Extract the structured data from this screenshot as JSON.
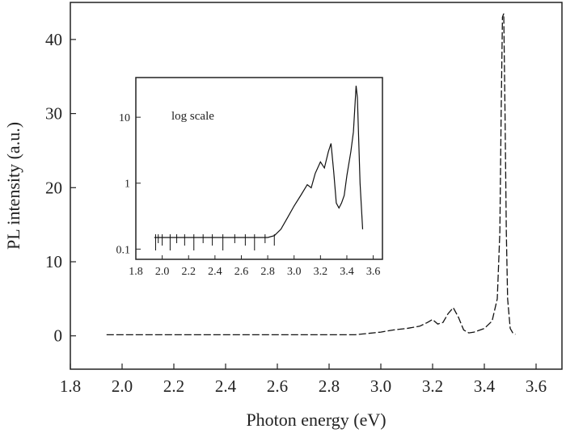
{
  "chart_data": [
    {
      "type": "line",
      "xlabel": "Photon energy (eV)",
      "ylabel": "PL intensity (a.u.)",
      "xlim": [
        1.8,
        3.7
      ],
      "ylim": [
        -4.5,
        45
      ],
      "xticks": [
        "1.8",
        "2.0",
        "2.2",
        "2.4",
        "2.6",
        "2.8",
        "3.0",
        "3.2",
        "3.4",
        "3.6"
      ],
      "yticks": [
        "0",
        "10",
        "20",
        "30",
        "40"
      ],
      "grid": false,
      "series": [
        {
          "x": [
            1.94,
            2.2,
            2.5,
            2.8,
            2.9,
            3.0,
            3.05,
            3.1,
            3.15,
            3.18,
            3.2,
            3.22,
            3.24,
            3.26,
            3.28,
            3.3,
            3.32,
            3.34,
            3.36,
            3.4,
            3.43,
            3.45,
            3.46,
            3.465,
            3.47,
            3.475,
            3.48,
            3.485,
            3.49,
            3.5,
            3.51,
            3.52
          ],
          "y": [
            0.15,
            0.15,
            0.15,
            0.15,
            0.15,
            0.5,
            0.8,
            1.0,
            1.3,
            1.8,
            2.2,
            1.6,
            1.8,
            3.0,
            3.8,
            2.5,
            0.8,
            0.4,
            0.5,
            1.0,
            2.0,
            5.0,
            14.0,
            30.0,
            43.0,
            43.5,
            30.0,
            14.0,
            5.0,
            1.0,
            0.4,
            0.2
          ]
        }
      ]
    },
    {
      "type": "line",
      "xlabel": "",
      "ylabel": "",
      "xscale": "linear",
      "yscale": "log",
      "xlim": [
        1.8,
        3.67
      ],
      "ylim": [
        0.07,
        40
      ],
      "xticks": [
        "1.8",
        "2.0",
        "2.2",
        "2.4",
        "2.6",
        "2.8",
        "3.0",
        "3.2",
        "3.4",
        "3.6"
      ],
      "yticks": [
        "0.1",
        "1",
        "10"
      ],
      "annotation": "log scale",
      "grid": false,
      "series": [
        {
          "x": [
            1.94,
            2.1,
            2.3,
            2.5,
            2.7,
            2.8,
            2.85,
            2.9,
            2.95,
            3.0,
            3.05,
            3.1,
            3.13,
            3.16,
            3.2,
            3.23,
            3.26,
            3.28,
            3.3,
            3.32,
            3.34,
            3.36,
            3.38,
            3.4,
            3.43,
            3.45,
            3.47,
            3.48,
            3.5,
            3.52
          ],
          "y": [
            0.15,
            0.15,
            0.15,
            0.15,
            0.15,
            0.15,
            0.16,
            0.2,
            0.3,
            0.45,
            0.65,
            0.95,
            0.85,
            1.4,
            2.1,
            1.7,
            3.0,
            4.0,
            1.5,
            0.5,
            0.42,
            0.5,
            0.65,
            1.3,
            3.0,
            6.0,
            30.0,
            20.0,
            1.0,
            0.2
          ]
        }
      ]
    }
  ]
}
